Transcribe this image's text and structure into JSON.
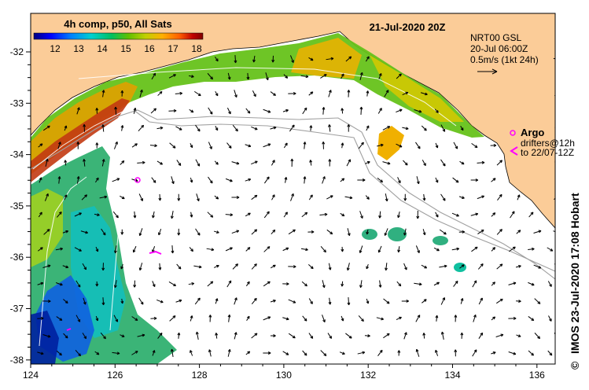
{
  "title": "4h comp, p50, All Sats",
  "date_label": "21-Jul-2020 20Z",
  "colorbar": {
    "ticks": [
      "12",
      "13",
      "14",
      "15",
      "16",
      "17",
      "18"
    ],
    "colors": [
      "#000080",
      "#0000ff",
      "#0080ff",
      "#00d0d0",
      "#00c060",
      "#60c000",
      "#c0d000",
      "#ffb000",
      "#ff6000",
      "#c00000",
      "#800000"
    ]
  },
  "current_legend": {
    "model": "NRT00 GSL",
    "time": "20-Jul 06:00Z",
    "scale": "0.5m/s (1kt 24h)"
  },
  "argo_label": "Argo",
  "drifters_label": "drifters@12h",
  "drifters_to": "to 22/07-12Z",
  "credit": "IMOS 23-Jul-2020 17:08 Hobart",
  "copyright_symbol": "©",
  "x_axis": {
    "ticks": [
      "124",
      "126",
      "128",
      "130",
      "132",
      "134",
      "136"
    ]
  },
  "y_axis": {
    "ticks": [
      "-32",
      "-33",
      "-34",
      "-35",
      "-36",
      "-37",
      "-38"
    ]
  },
  "colors": {
    "land": "#fbcc98",
    "argo": "#ff00ff",
    "arrow": "#000000",
    "contour": "#a0a0a0"
  }
}
